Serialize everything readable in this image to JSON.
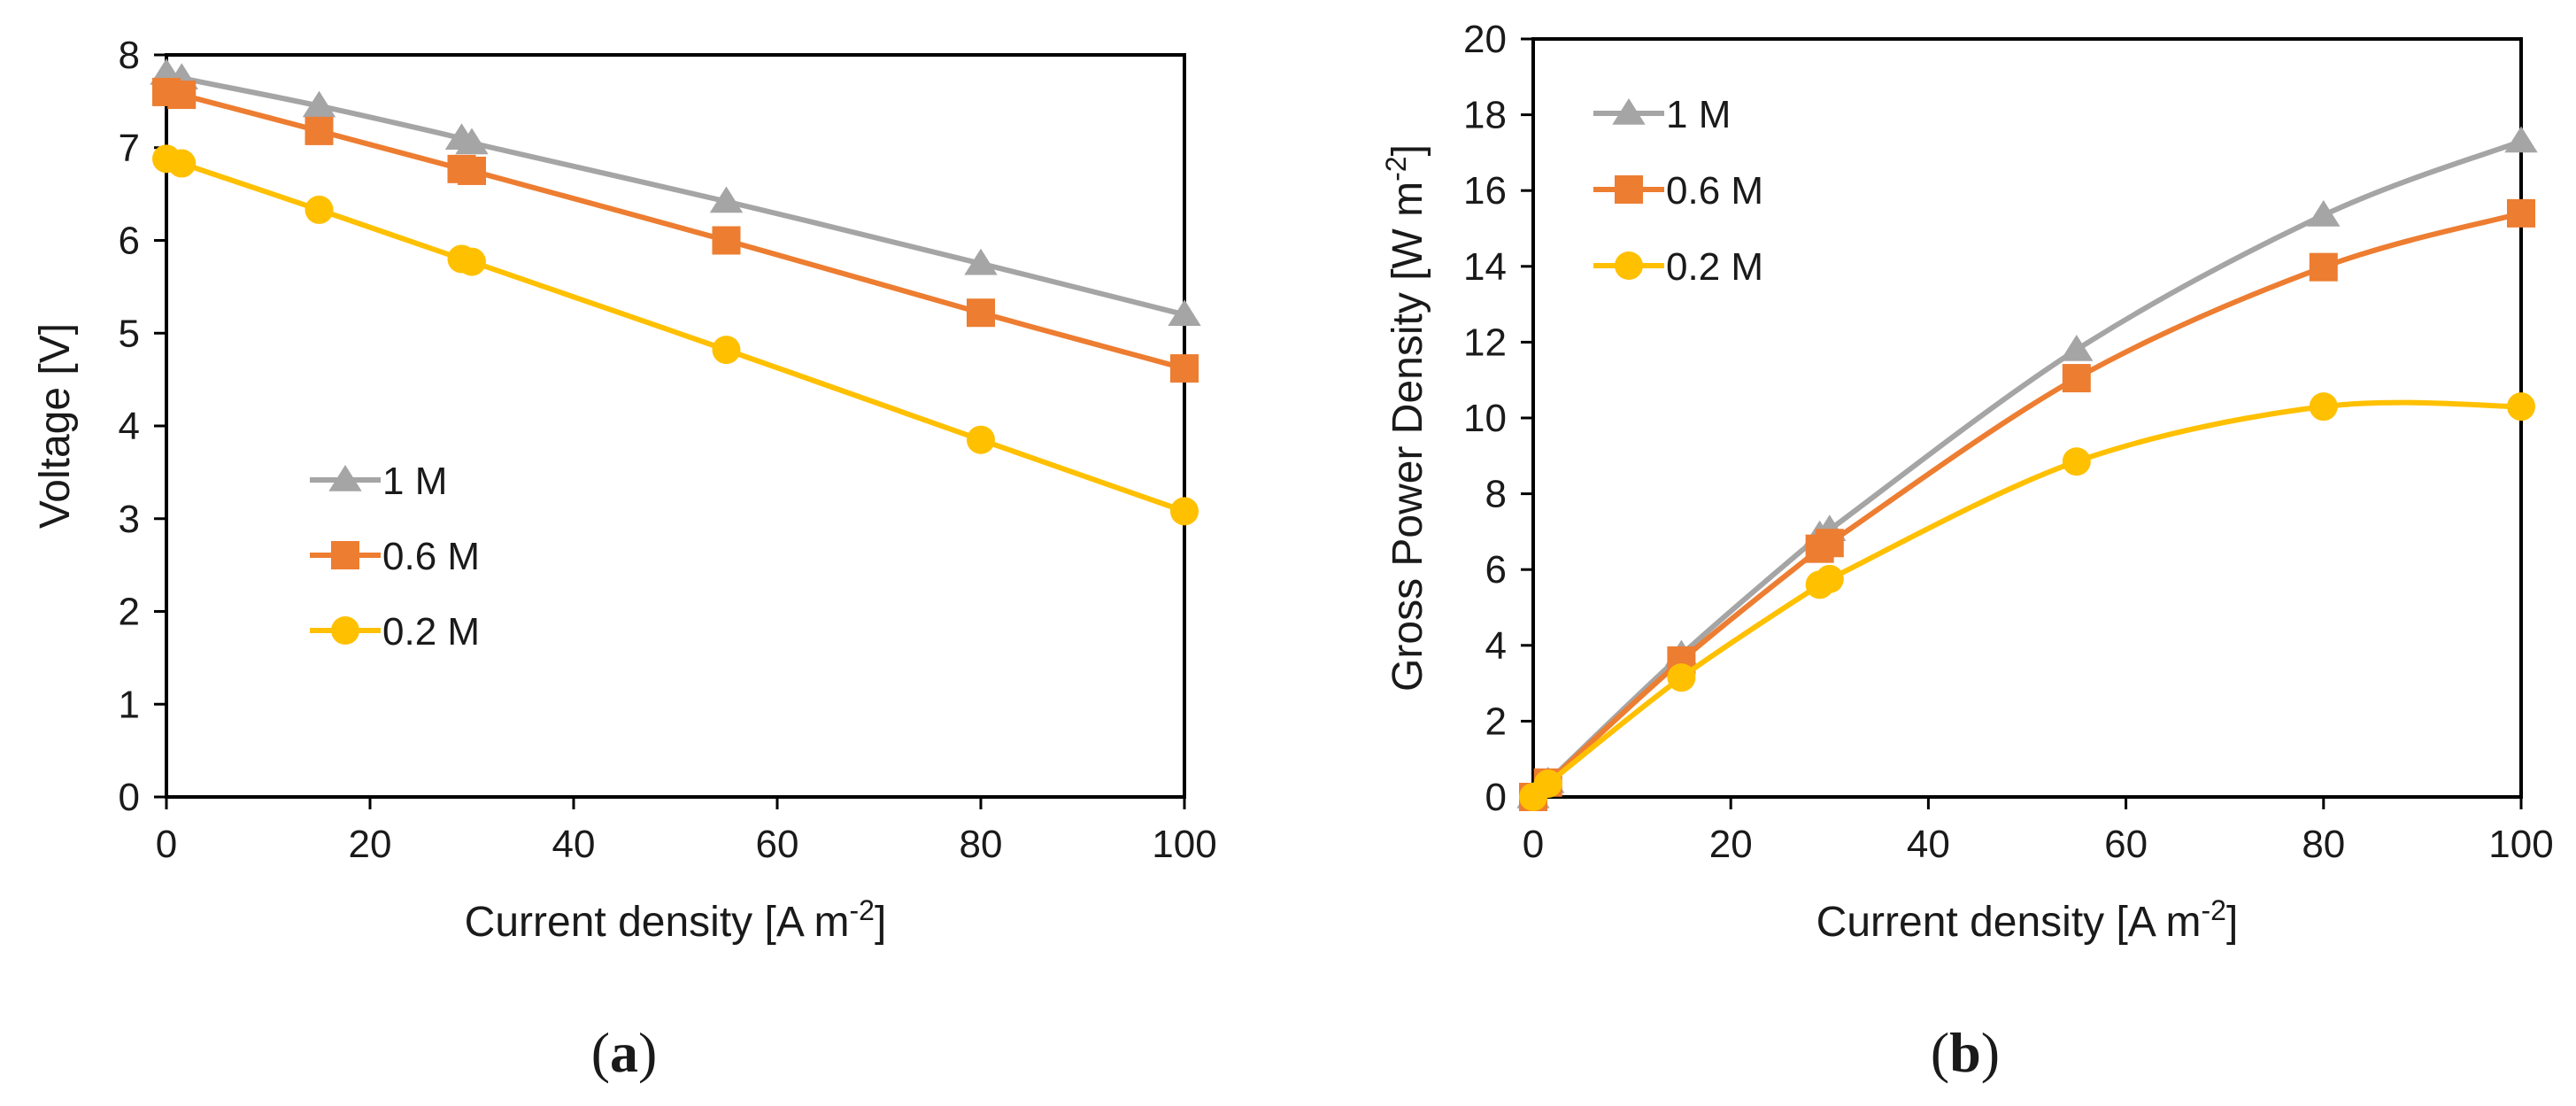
{
  "colors": {
    "series_1M": "#a5a5a5",
    "series_06M": "#ed7d31",
    "series_02M": "#ffc000",
    "axis": "#000000"
  },
  "chart_data": [
    {
      "type": "line",
      "panel_label": "a",
      "title": "",
      "xlabel": "Current density [A m",
      "xlabel_sup": "-2",
      "xlabel_suffix": "]",
      "ylabel": "Voltage [V]",
      "xlim": [
        0,
        100
      ],
      "ylim": [
        0,
        8
      ],
      "x_ticks": [
        0,
        20,
        40,
        60,
        80,
        100
      ],
      "y_ticks": [
        0,
        1,
        2,
        3,
        4,
        5,
        6,
        7,
        8
      ],
      "grid": false,
      "legend_position": "middle-left",
      "series": [
        {
          "name": "1 M",
          "marker": "triangle",
          "color": "#a5a5a5",
          "x": [
            0,
            1.5,
            15,
            29,
            30,
            55,
            80,
            100
          ],
          "y": [
            7.8,
            7.75,
            7.45,
            7.1,
            7.05,
            6.42,
            5.75,
            5.2
          ]
        },
        {
          "name": "0.6 M",
          "marker": "square",
          "color": "#ed7d31",
          "x": [
            0,
            1.5,
            15,
            29,
            30,
            55,
            80,
            100
          ],
          "y": [
            7.6,
            7.57,
            7.18,
            6.77,
            6.75,
            6.0,
            5.22,
            4.62
          ]
        },
        {
          "name": "0.2 M",
          "marker": "circle",
          "color": "#ffc000",
          "x": [
            0,
            1.5,
            15,
            29,
            30,
            55,
            80,
            100
          ],
          "y": [
            6.88,
            6.83,
            6.33,
            5.8,
            5.77,
            4.82,
            3.85,
            3.08
          ]
        }
      ]
    },
    {
      "type": "line",
      "panel_label": "b",
      "title": "",
      "xlabel": "Current density [A m",
      "xlabel_sup": "-2",
      "xlabel_suffix": "]",
      "ylabel": "Gross Power Density [W m",
      "ylabel_sup": "-2",
      "ylabel_suffix": "]",
      "xlim": [
        0,
        100
      ],
      "ylim": [
        0,
        20
      ],
      "x_ticks": [
        0,
        20,
        40,
        60,
        80,
        100
      ],
      "y_ticks": [
        0,
        2,
        4,
        6,
        8,
        10,
        12,
        14,
        16,
        18,
        20
      ],
      "grid": false,
      "legend_position": "top-left",
      "series": [
        {
          "name": "1 M",
          "marker": "triangle",
          "color": "#a5a5a5",
          "x": [
            0,
            1.5,
            15,
            29,
            30,
            55,
            80,
            100
          ],
          "y": [
            0,
            0.4,
            3.75,
            6.9,
            7.05,
            11.8,
            15.35,
            17.3
          ]
        },
        {
          "name": "0.6 M",
          "marker": "square",
          "color": "#ed7d31",
          "x": [
            0,
            1.5,
            15,
            29,
            30,
            55,
            80,
            100
          ],
          "y": [
            0,
            0.38,
            3.6,
            6.55,
            6.7,
            11.05,
            13.98,
            15.4
          ]
        },
        {
          "name": "0.2 M",
          "marker": "circle",
          "color": "#ffc000",
          "x": [
            0,
            1.5,
            15,
            29,
            30,
            55,
            80,
            100
          ],
          "y": [
            0,
            0.35,
            3.15,
            5.6,
            5.75,
            8.85,
            10.3,
            10.3
          ]
        }
      ]
    }
  ]
}
